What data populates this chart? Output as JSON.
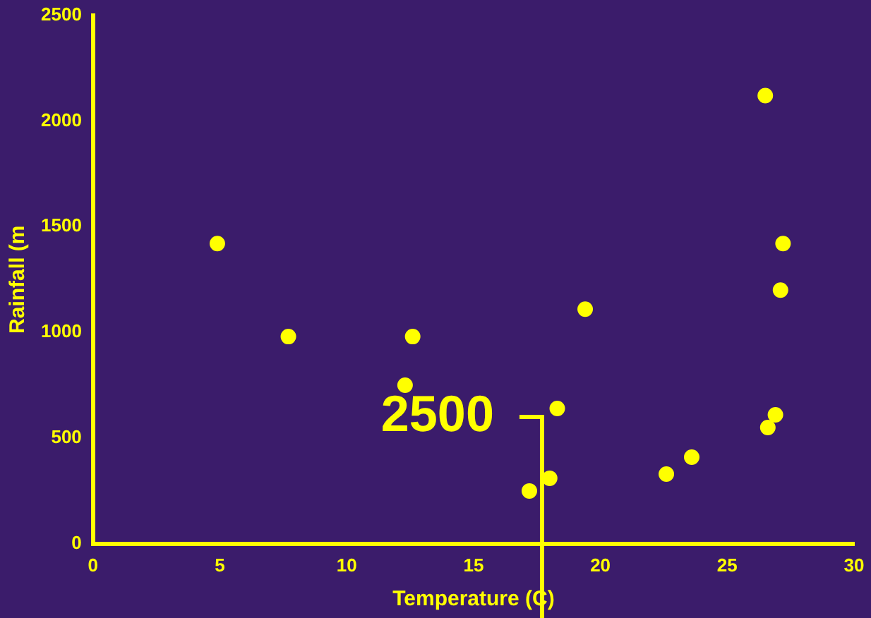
{
  "chart_data": {
    "type": "scatter",
    "xlabel": "Temperature (C)",
    "ylabel": "Rainfall (m",
    "annotations": [
      "2500"
    ],
    "x": [
      4.9,
      7.7,
      12.6,
      12.3,
      17.2,
      18,
      18.3,
      19.4,
      22.6,
      23.6,
      26.5,
      27.2,
      27.1,
      26.9,
      26.6
    ],
    "series": [
      {
        "color": "#ffff00",
        "values": [
          1420,
          980,
          980,
          750,
          250,
          310,
          640,
          1110,
          330,
          410,
          2120,
          1420,
          1200,
          610,
          550
        ]
      }
    ],
    "xlim": [
      0,
      30
    ],
    "xticks": [
      0,
      5,
      10,
      15,
      20,
      25,
      30
    ],
    "ylim": [
      0,
      2500
    ],
    "yticks": [
      0,
      500,
      1000,
      1500,
      2000,
      2500
    ],
    "grid": false,
    "legend": false,
    "marker": "circle"
  }
}
